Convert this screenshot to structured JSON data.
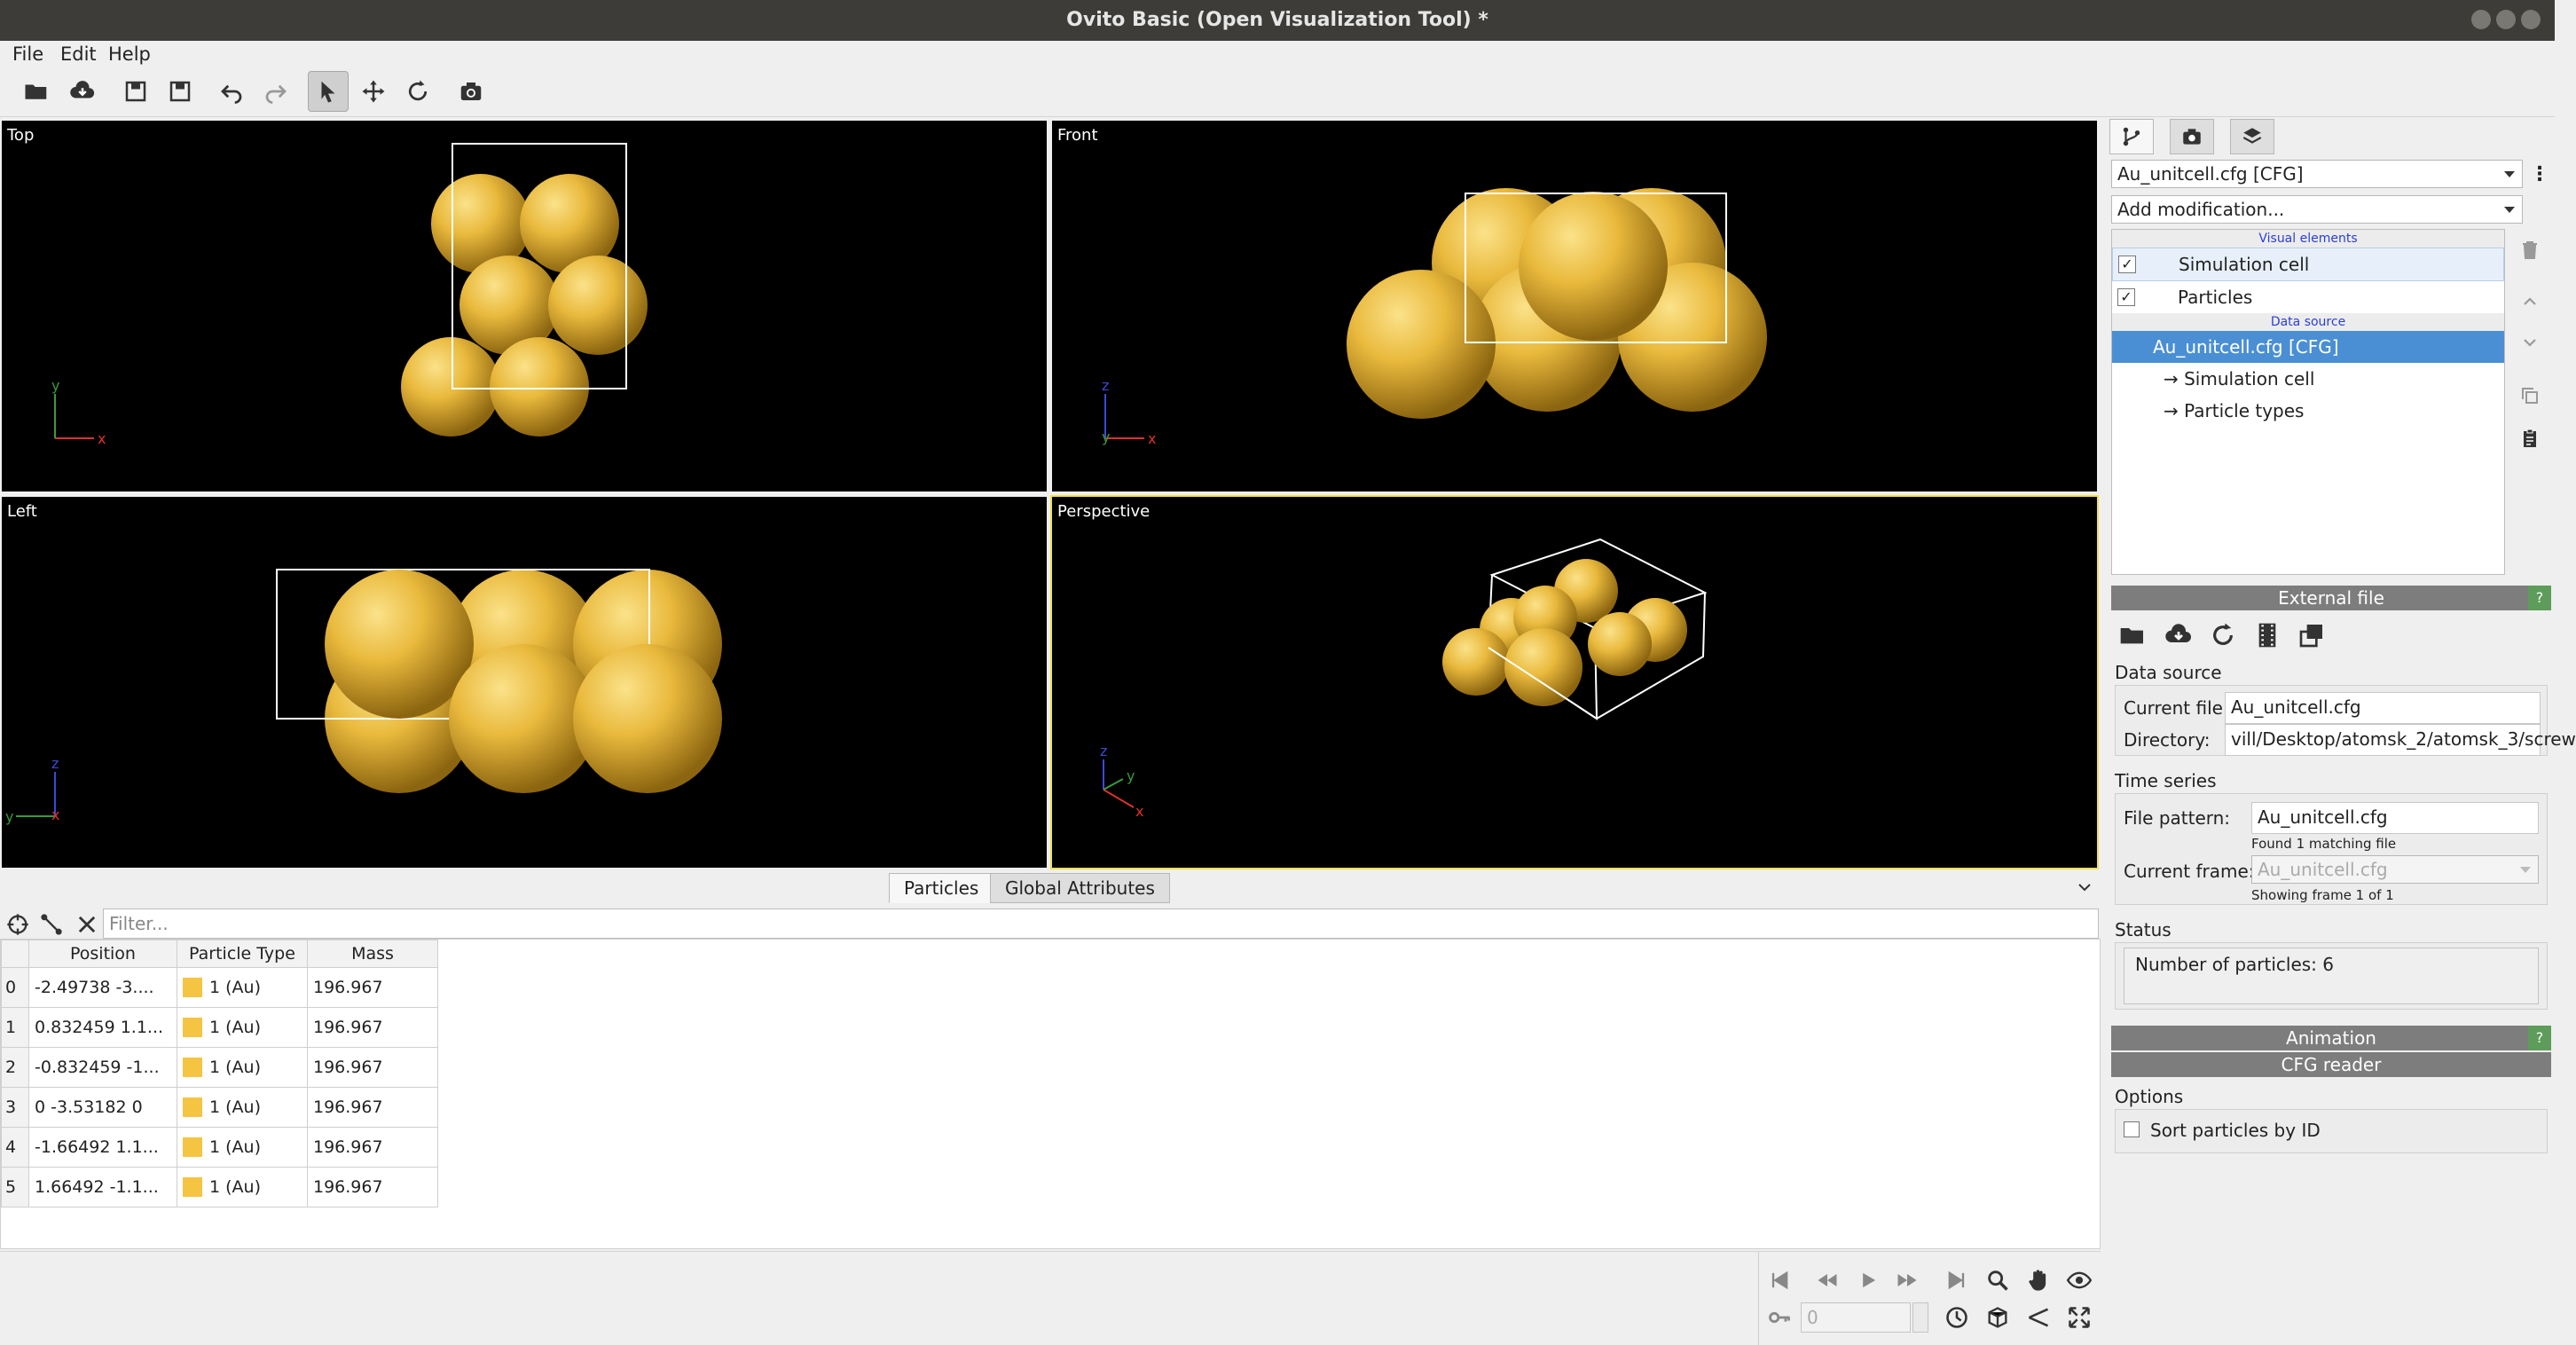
{
  "window": {
    "title": "Ovito Basic (Open Visualization Tool) *"
  },
  "menu": [
    "File",
    "Edit",
    "Help"
  ],
  "toolbar": {
    "icons": [
      "open-file-icon",
      "cloud-download-icon",
      "load-session-icon",
      "save-session-icon",
      "undo-icon",
      "redo-icon",
      "select-mode-icon",
      "move-mode-icon",
      "rotate-mode-icon",
      "render-icon"
    ]
  },
  "viewports": {
    "top": "Top",
    "front": "Front",
    "left": "Left",
    "perspective": "Perspective"
  },
  "axes": {
    "x": "x",
    "y": "y",
    "z": "z"
  },
  "datainspector": {
    "tabs": [
      "Particles",
      "Global Attributes"
    ],
    "filter_placeholder": "Filter...",
    "columns": [
      "Position",
      "Particle Type",
      "Mass"
    ],
    "rows": [
      {
        "idx": "0",
        "position": "-2.49738 -3....",
        "type": "1 (Au)",
        "mass": "196.967"
      },
      {
        "idx": "1",
        "position": "0.832459 1.1...",
        "type": "1 (Au)",
        "mass": "196.967"
      },
      {
        "idx": "2",
        "position": "-0.832459 -1...",
        "type": "1 (Au)",
        "mass": "196.967"
      },
      {
        "idx": "3",
        "position": "0 -3.53182 0",
        "type": "1 (Au)",
        "mass": "196.967"
      },
      {
        "idx": "4",
        "position": "-1.66492 1.1...",
        "type": "1 (Au)",
        "mass": "196.967"
      },
      {
        "idx": "5",
        "position": "1.66492 -1.1...",
        "type": "1 (Au)",
        "mass": "196.967"
      }
    ],
    "type_color": "#f5c442"
  },
  "animation": {
    "frame": "0"
  },
  "pipeline": {
    "selector": "Au_unitcell.cfg [CFG]",
    "add_modification": "Add modification...",
    "visual_elements_header": "Visual elements",
    "visual_elements": [
      "Simulation cell",
      "Particles"
    ],
    "data_source_header": "Data source",
    "data_source": "Au_unitcell.cfg [CFG]",
    "sub_items": [
      "→ Simulation cell",
      "→ Particle types"
    ]
  },
  "external_file": {
    "header": "External file",
    "help": "?",
    "data_source_label": "Data source",
    "current_file_label": "Current file:",
    "current_file": "Au_unitcell.cfg",
    "directory_label": "Directory:",
    "directory": "vill/Desktop/atomsk_2/atomsk_3/screw",
    "time_series_label": "Time series",
    "file_pattern_label": "File pattern:",
    "file_pattern": "Au_unitcell.cfg",
    "found_text": "Found 1 matching file",
    "current_frame_label": "Current frame:",
    "current_frame": "Au_unitcell.cfg",
    "showing_text": "Showing frame 1 of 1",
    "status_label": "Status",
    "status_text": "Number of particles: 6"
  },
  "animation_panel": {
    "header": "Animation",
    "help": "?"
  },
  "cfg_reader": {
    "header": "CFG reader",
    "options_label": "Options",
    "sort_label": "Sort particles by ID"
  }
}
